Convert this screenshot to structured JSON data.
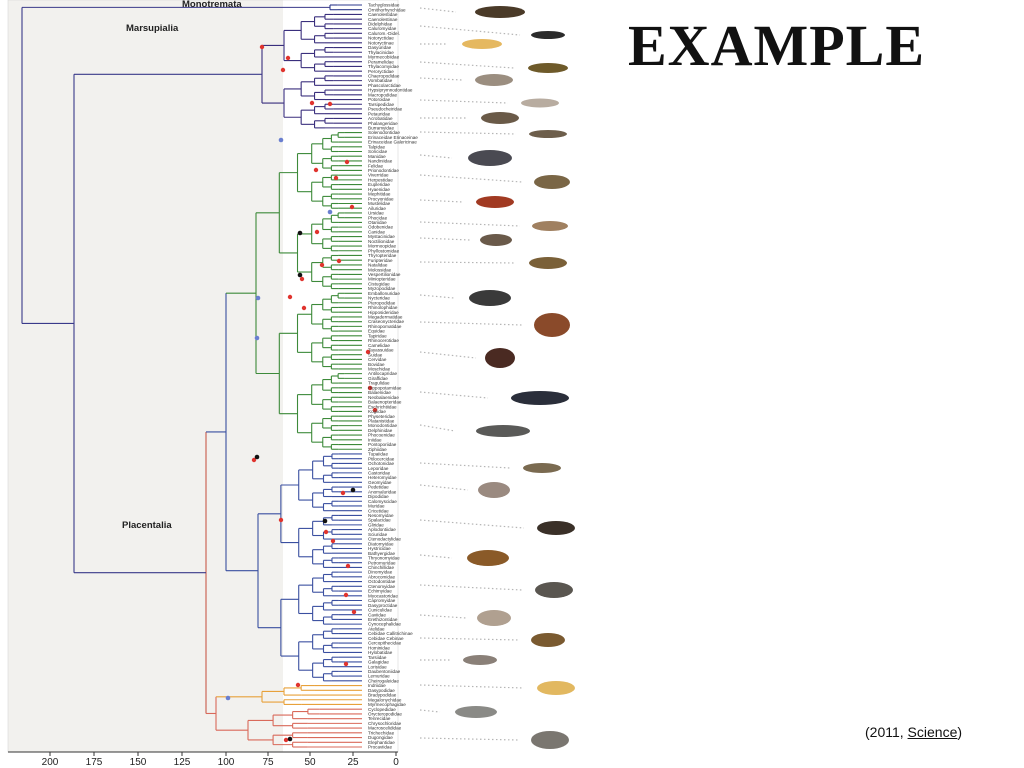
{
  "slide": {
    "title": "EXAMPLE",
    "citation_prefix": "(2011, ",
    "citation_link": "Science",
    "citation_suffix": ")"
  },
  "tree": {
    "clades": [
      "Monotremata",
      "Marsupialia",
      "Placentalia"
    ],
    "axis_ticks": [
      "200",
      "175",
      "150",
      "125",
      "100",
      "75",
      "50",
      "25",
      "0"
    ],
    "taxa": [
      "Tachyglossidae",
      "Ornithorhynchidae",
      "Caenolestidae",
      "Caenolestinae",
      "Didelphidae",
      "Caluromyidae",
      "Calurom.-Didel.",
      "Notoryctidae",
      "Notoryctinae",
      "Dasyuridae",
      "Thylacinidae",
      "Myrmecobiidae",
      "Peramelidae",
      "Thylacomyidae",
      "Peroryctidae",
      "Chaeropodidae",
      "Vombatidae",
      "Phascolarctidae",
      "Hypsiprymnodontidae",
      "Macropodidae",
      "Potoroidae",
      "Tarsipedidae",
      "Pseudocheiridae",
      "Petauridae",
      "Acrobatidae",
      "Phalangeridae",
      "Burramyidae",
      "Solenodontidae",
      "Erinaceidae Erinaceinae",
      "Erinaceidae Galericinae",
      "Talpidae",
      "Soricidae",
      "Manidae",
      "Nandiniidae",
      "Felidae",
      "Prionodontidae",
      "Viverridae",
      "Herpestidae",
      "Eupleridae",
      "Hyaenidae",
      "Mephitidae",
      "Procyonidae",
      "Mustelidae",
      "Ailuridae",
      "Ursidae",
      "Phocidae",
      "Otariidae",
      "Odobenidae",
      "Canidae",
      "Mystacinidae",
      "Noctilionidae",
      "Mormoopidae",
      "Phyllostomidae",
      "Thyropteridae",
      "Furipteridae",
      "Natalidae",
      "Molossidae",
      "Vespertilionidae",
      "Miniopteridae",
      "Cistugidae",
      "Myzopodidae",
      "Emballonuridae",
      "Nycteridae",
      "Pteropodidae",
      "Rhinolophidae",
      "Hipposideridae",
      "Megadermatidae",
      "Craseonycteridae",
      "Rhinopomatidae",
      "Equidae",
      "Tapiridae",
      "Rhinocerotidae",
      "Camelidae",
      "Tayassuidae",
      "Suidae",
      "Cervidae",
      "Bovidae",
      "Moschidae",
      "Antilocapridae",
      "Giraffidae",
      "Tragulidae",
      "Hippopotamidae",
      "Balaenidae",
      "Neobalaenidae",
      "Balaenopteridae",
      "Eschrichtiidae",
      "Kogiidae",
      "Physeteridae",
      "Platanistidae",
      "Monodontidae",
      "Delphinidae",
      "Phocoenidae",
      "Iniidae",
      "Pontoporiidae",
      "Ziphiidae",
      "Tupaiidae",
      "Ptilocercidae",
      "Ochotonidae",
      "Leporidae",
      "Castoridae",
      "Heteromyidae",
      "Geomyidae",
      "Pedetidae",
      "Anomaluridae",
      "Dipodidae",
      "Calomyscidae",
      "Muridae",
      "Cricetidae",
      "Nesomyidae",
      "Spalacidae",
      "Gliridae",
      "Aplodontiidae",
      "Sciuridae",
      "Ctenodactylidae",
      "Diatomyidae",
      "Hystricidae",
      "Bathyergidae",
      "Thryonomyidae",
      "Petromuridae",
      "Chinchillidae",
      "Dinomyidae",
      "Abrocomidae",
      "Octodontidae",
      "Ctenomyidae",
      "Echimyidae",
      "Myocastoridae",
      "Capromyidae",
      "Dasyproctidae",
      "Cuniculidae",
      "Caviidae",
      "Erethizontidae",
      "Cynocephalidae",
      "Atelidae",
      "Cebidae Callitrichinae",
      "Cebidae Cebinae",
      "Cercopithecidae",
      "Hominidae",
      "Hylobatidae",
      "Tarsiidae",
      "Galagidae",
      "Lorisidae",
      "Daubentoniidae",
      "Lemuridae",
      "Cheirogaleidae",
      "Indriidae",
      "Dasypodidae",
      "Bradypodidae",
      "Megalonychidae",
      "Myrmecophagidae",
      "Cyclopedidae",
      "Orycteropodidae",
      "Tenrecidae",
      "Chrysochloridae",
      "Macroscelididae",
      "Trichechidae",
      "Dugongidae",
      "Elephantidae",
      "Procaviidae"
    ]
  }
}
